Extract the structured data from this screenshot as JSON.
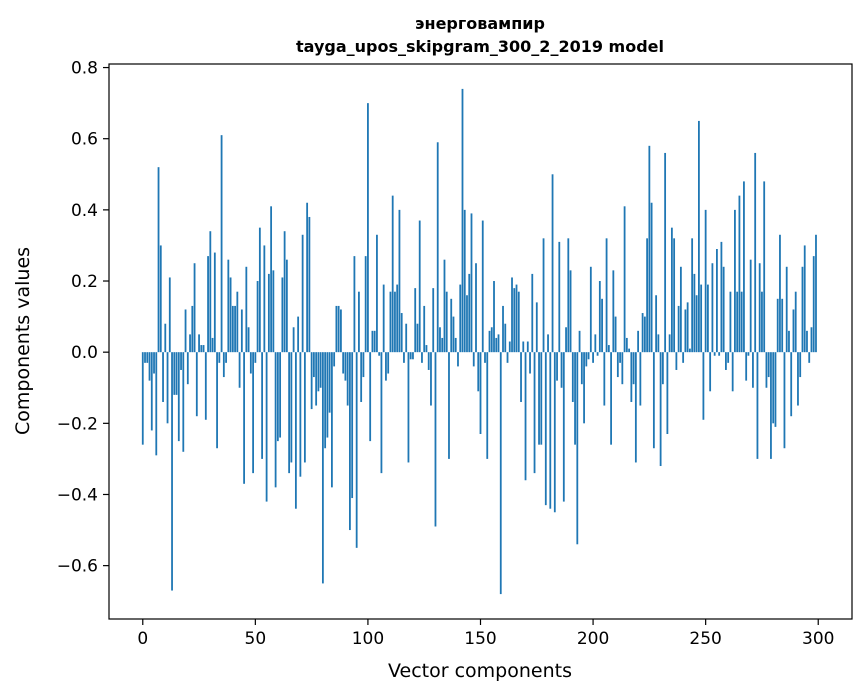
{
  "chart_data": {
    "type": "bar",
    "title_line1": "энерговампир",
    "title_line2": "tayga_upos_skipgram_300_2_2019 model",
    "xlabel": "Vector components",
    "ylabel": "Components values",
    "xlim": [
      -15,
      315
    ],
    "ylim": [
      -0.75,
      0.81
    ],
    "xticks": [
      0,
      50,
      100,
      150,
      200,
      250,
      300
    ],
    "xtick_labels": [
      "0",
      "50",
      "100",
      "150",
      "200",
      "250",
      "300"
    ],
    "yticks": [
      -0.6,
      -0.4,
      -0.2,
      0.0,
      0.2,
      0.4,
      0.6,
      0.8
    ],
    "ytick_labels": [
      "−0.6",
      "−0.4",
      "−0.2",
      "0.0",
      "0.2",
      "0.4",
      "0.6",
      "0.8"
    ],
    "bar_color": "#1f77b4",
    "values": [
      -0.26,
      -0.03,
      -0.03,
      -0.08,
      -0.22,
      -0.06,
      -0.29,
      0.52,
      0.3,
      -0.14,
      0.08,
      -0.2,
      0.21,
      -0.67,
      -0.12,
      -0.12,
      -0.25,
      -0.05,
      -0.28,
      0.12,
      -0.09,
      0.05,
      0.13,
      0.25,
      -0.18,
      0.05,
      0.02,
      0.02,
      -0.19,
      0.27,
      0.34,
      0.04,
      0.28,
      -0.27,
      -0.03,
      0.61,
      -0.07,
      -0.03,
      0.26,
      0.21,
      0.13,
      0.13,
      0.17,
      -0.1,
      0.12,
      -0.37,
      0.24,
      0.07,
      -0.06,
      -0.34,
      -0.03,
      0.2,
      0.35,
      -0.3,
      0.3,
      -0.42,
      0.22,
      0.41,
      0.23,
      -0.38,
      -0.25,
      -0.24,
      0.21,
      0.34,
      0.26,
      -0.34,
      -0.31,
      0.07,
      -0.44,
      0.1,
      -0.35,
      0.33,
      -0.31,
      0.42,
      0.38,
      -0.16,
      -0.07,
      -0.15,
      -0.11,
      -0.1,
      -0.65,
      -0.27,
      -0.24,
      -0.17,
      -0.38,
      -0.04,
      0.13,
      0.13,
      0.12,
      -0.06,
      -0.08,
      -0.15,
      -0.5,
      -0.41,
      0.27,
      -0.55,
      0.17,
      -0.14,
      -0.07,
      0.27,
      0.7,
      -0.25,
      0.06,
      0.06,
      0.33,
      -0.01,
      -0.34,
      0.19,
      -0.08,
      -0.06,
      0.17,
      0.44,
      0.17,
      0.19,
      0.4,
      0.11,
      -0.03,
      0.08,
      -0.31,
      -0.02,
      -0.02,
      0.18,
      0.08,
      0.37,
      -0.03,
      0.13,
      0.02,
      -0.05,
      -0.15,
      0.18,
      -0.49,
      0.59,
      0.07,
      0.04,
      0.26,
      0.17,
      -0.3,
      0.15,
      0.1,
      0.04,
      -0.04,
      0.19,
      0.74,
      0.4,
      0.16,
      0.22,
      0.39,
      -0.04,
      0.25,
      -0.11,
      -0.23,
      0.37,
      -0.03,
      -0.3,
      0.06,
      0.07,
      0.2,
      0.04,
      0.05,
      -0.68,
      0.13,
      0.08,
      -0.03,
      0.03,
      0.21,
      0.18,
      0.19,
      0.17,
      -0.14,
      0.03,
      -0.36,
      0.03,
      -0.06,
      0.22,
      -0.34,
      0.14,
      -0.26,
      -0.26,
      0.32,
      -0.43,
      0.05,
      -0.44,
      0.5,
      -0.45,
      -0.08,
      0.31,
      -0.1,
      -0.42,
      0.07,
      0.32,
      0.23,
      -0.14,
      -0.26,
      -0.54,
      0.06,
      -0.09,
      -0.2,
      -0.04,
      -0.02,
      0.24,
      -0.03,
      0.05,
      -0.01,
      0.2,
      0.15,
      -0.15,
      0.32,
      0.02,
      -0.26,
      0.23,
      0.1,
      -0.07,
      -0.03,
      -0.09,
      0.41,
      0.04,
      0.01,
      -0.14,
      -0.09,
      -0.31,
      0.06,
      -0.15,
      0.11,
      0.1,
      0.32,
      0.58,
      0.42,
      -0.27,
      0.16,
      0.05,
      -0.32,
      -0.09,
      0.56,
      -0.23,
      0.05,
      0.35,
      0.32,
      -0.05,
      0.13,
      0.24,
      -0.03,
      0.12,
      0.14,
      0.01,
      0.32,
      0.22,
      0.16,
      0.65,
      0.19,
      -0.19,
      0.4,
      0.19,
      -0.11,
      0.25,
      -0.01,
      0.29,
      -0.01,
      0.31,
      0.24,
      -0.05,
      -0.03,
      0.17,
      -0.11,
      0.4,
      0.17,
      0.44,
      0.17,
      0.48,
      -0.08,
      -0.01,
      0.26,
      -0.1,
      0.56,
      -0.3,
      0.25,
      0.17,
      0.48,
      -0.1,
      -0.07,
      -0.3,
      -0.2,
      -0.21,
      0.15,
      0.33,
      0.15,
      -0.27,
      0.24,
      0.06,
      -0.18,
      0.12,
      0.17,
      -0.15,
      -0.07,
      0.24,
      0.3,
      0.06,
      -0.03,
      0.07,
      0.27,
      0.33
    ]
  }
}
